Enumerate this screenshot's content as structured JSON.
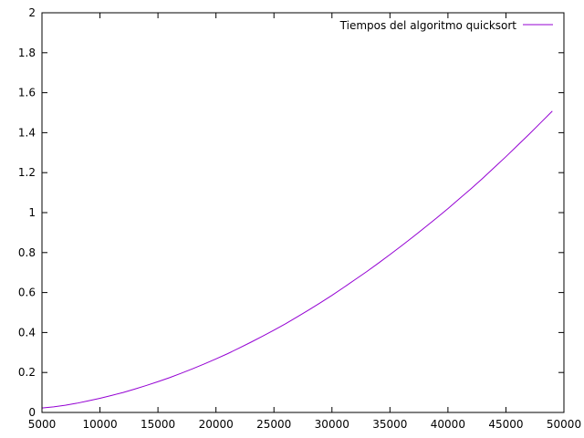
{
  "chart_data": {
    "type": "line",
    "title": "",
    "xlabel": "",
    "ylabel": "",
    "xlim": [
      5000,
      50000
    ],
    "ylim": [
      0,
      2
    ],
    "xticks": [
      5000,
      10000,
      15000,
      20000,
      25000,
      30000,
      35000,
      40000,
      45000,
      50000
    ],
    "yticks": [
      0,
      0.2,
      0.4,
      0.6,
      0.8,
      1,
      1.2,
      1.4,
      1.6,
      1.8,
      2
    ],
    "xtick_labels": [
      "5000",
      "10000",
      "15000",
      "20000",
      "25000",
      "30000",
      "35000",
      "40000",
      "45000",
      "50000"
    ],
    "ytick_labels": [
      "0",
      "0.2",
      "0.4",
      "0.6",
      "0.8",
      "1",
      "1.2",
      "1.4",
      "1.6",
      "1.8",
      "2"
    ],
    "grid": false,
    "legend_position": "top-right",
    "series": [
      {
        "name": "Tiempos del algoritmo quicksort",
        "color": "#9400D3",
        "x": [
          5000,
          6000,
          7000,
          8000,
          9000,
          10000,
          11000,
          12000,
          13000,
          14000,
          15000,
          16000,
          17000,
          18000,
          19000,
          20000,
          21000,
          22000,
          23000,
          24000,
          25000,
          26000,
          27000,
          28000,
          29000,
          30000,
          31000,
          32000,
          33000,
          34000,
          35000,
          36000,
          37000,
          38000,
          39000,
          40000,
          41000,
          42000,
          43000,
          44000,
          45000,
          46000,
          47000,
          48000,
          49000
        ],
        "y": [
          0.022,
          0.028,
          0.036,
          0.046,
          0.058,
          0.071,
          0.085,
          0.1,
          0.117,
          0.135,
          0.154,
          0.174,
          0.196,
          0.219,
          0.243,
          0.268,
          0.294,
          0.322,
          0.351,
          0.381,
          0.412,
          0.444,
          0.478,
          0.513,
          0.549,
          0.586,
          0.625,
          0.665,
          0.705,
          0.747,
          0.79,
          0.834,
          0.879,
          0.925,
          0.972,
          1.02,
          1.07,
          1.12,
          1.172,
          1.226,
          1.28,
          1.336,
          1.392,
          1.45,
          1.508
        ]
      }
    ]
  }
}
